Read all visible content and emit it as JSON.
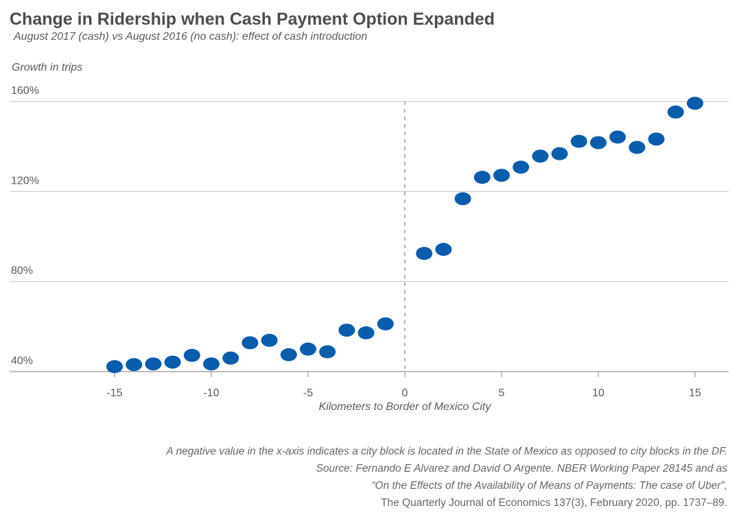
{
  "chart_data": {
    "type": "scatter",
    "title": "Change in Ridership when Cash Payment Option Expanded",
    "subtitle": "August 2017 (cash) vs August 2016 (no cash): effect of cash introduction",
    "ylabel": "Growth in trips",
    "xlabel": "Kilometers to Border of Mexico City",
    "y_ticks": [
      "160%",
      "120%",
      "80%",
      "40%"
    ],
    "y_tick_values": [
      160,
      120,
      80,
      40
    ],
    "x_ticks": [
      "-15",
      "-10",
      "-5",
      "0",
      "5",
      "10",
      "15"
    ],
    "x_tick_values": [
      -15,
      -10,
      -5,
      0,
      5,
      10,
      15
    ],
    "xlim": [
      -16,
      16
    ],
    "ylim": [
      40,
      160
    ],
    "grid": "horizontal",
    "reference_line_x": 0,
    "point_color": "#0a5cad",
    "gridline_color": "#cccccc",
    "points": [
      {
        "x": -15,
        "y": 42.2
      },
      {
        "x": -14,
        "y": 43.1
      },
      {
        "x": -13,
        "y": 43.4
      },
      {
        "x": -12,
        "y": 44.2
      },
      {
        "x": -11,
        "y": 47.2
      },
      {
        "x": -10,
        "y": 43.4
      },
      {
        "x": -9,
        "y": 46.0
      },
      {
        "x": -8,
        "y": 52.8
      },
      {
        "x": -7,
        "y": 53.9
      },
      {
        "x": -6,
        "y": 47.5
      },
      {
        "x": -5,
        "y": 50.0
      },
      {
        "x": -4,
        "y": 48.8
      },
      {
        "x": -3,
        "y": 58.4
      },
      {
        "x": -2,
        "y": 57.2
      },
      {
        "x": -1,
        "y": 61.2
      },
      {
        "x": 1,
        "y": 92.5
      },
      {
        "x": 2,
        "y": 94.3
      },
      {
        "x": 3,
        "y": 116.8
      },
      {
        "x": 4,
        "y": 126.3
      },
      {
        "x": 5,
        "y": 127.2
      },
      {
        "x": 6,
        "y": 130.8
      },
      {
        "x": 7,
        "y": 135.7
      },
      {
        "x": 8,
        "y": 136.8
      },
      {
        "x": 9,
        "y": 142.3
      },
      {
        "x": 10,
        "y": 141.7
      },
      {
        "x": 11,
        "y": 144.2
      },
      {
        "x": 12,
        "y": 139.6
      },
      {
        "x": 13,
        "y": 143.3
      },
      {
        "x": 14,
        "y": 155.3
      },
      {
        "x": 15,
        "y": 159.2
      }
    ]
  },
  "notes": {
    "line1": "A negative value in the x-axis indicates a city block is located in the State of Mexico as opposed to city blocks in the DF.",
    "line2": "Source: Fernando E Alvarez and David O Argente. NBER Working Paper 28145 and as",
    "line3": "“On the Effects of the Availability of Means of Payments: The case of Uber”,",
    "line4": "The Quarterly Journal of Economics 137(3), February 2020, pp. 1737–89."
  }
}
